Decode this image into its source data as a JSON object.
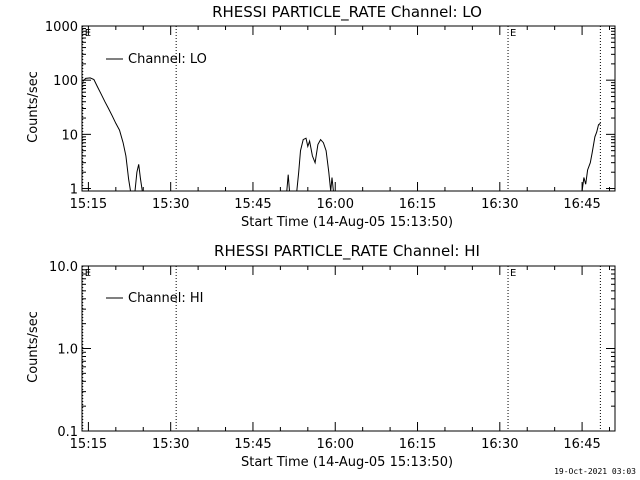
{
  "chart_data": [
    {
      "type": "line",
      "title": "RHESSI PARTICLE_RATE Channel: LO",
      "xlabel": "Start Time (14-Aug-05 15:13:50)",
      "ylabel": "Counts/sec",
      "y_scale": "log",
      "ylim": [
        0.9,
        1000
      ],
      "xlim": [
        "15:13:50",
        "16:51:00"
      ],
      "y_ticks": [
        {
          "value": 1,
          "label": "1"
        },
        {
          "value": 10,
          "label": "10"
        },
        {
          "value": 100,
          "label": "100"
        },
        {
          "value": 1000,
          "label": "1000"
        }
      ],
      "x_ticks": [
        "15:15",
        "15:30",
        "15:45",
        "16:00",
        "16:15",
        "16:30",
        "16:45"
      ],
      "legend": {
        "placement": "top-left",
        "entries": [
          "Channel: LO"
        ]
      },
      "markers": [
        {
          "time": "15:13:58",
          "label": "E"
        },
        {
          "time": "15:31:00",
          "label": ""
        },
        {
          "time": "16:31:30",
          "label": "E"
        },
        {
          "time": "16:48:20",
          "label": ""
        }
      ],
      "series": [
        {
          "name": "Channel: LO",
          "points": [
            [
              "15:14:00",
              95
            ],
            [
              "15:14:30",
              108
            ],
            [
              "15:15:20",
              110
            ],
            [
              "15:16:00",
              103
            ],
            [
              "15:16:40",
              75
            ],
            [
              "15:17:20",
              55
            ],
            [
              "15:18:00",
              40
            ],
            [
              "15:18:40",
              30
            ],
            [
              "15:19:20",
              22
            ],
            [
              "15:20:00",
              16
            ],
            [
              "15:20:40",
              12
            ],
            [
              "15:21:20",
              7
            ],
            [
              "15:21:50",
              4
            ],
            [
              "15:22:20",
              1.5
            ],
            [
              "15:22:40",
              0.9
            ],
            [
              "15:23:30",
              0.9
            ],
            [
              "15:23:50",
              2
            ],
            [
              "15:24:10",
              2.8
            ],
            [
              "15:24:30",
              1.5
            ],
            [
              "15:24:50",
              0.9
            ],
            [
              "15:51:10",
              0.9
            ],
            [
              "15:51:25",
              1.8
            ],
            [
              "15:51:40",
              0.9
            ],
            [
              "15:53:00",
              0.9
            ],
            [
              "15:53:20",
              2
            ],
            [
              "15:53:40",
              5
            ],
            [
              "15:54:10",
              8
            ],
            [
              "15:54:40",
              8.5
            ],
            [
              "15:55:00",
              6
            ],
            [
              "15:55:20",
              7.5
            ],
            [
              "15:55:50",
              4
            ],
            [
              "15:56:20",
              3
            ],
            [
              "15:56:50",
              6.5
            ],
            [
              "15:57:20",
              8
            ],
            [
              "15:57:50",
              7
            ],
            [
              "15:58:20",
              5
            ],
            [
              "15:58:50",
              2
            ],
            [
              "15:59:10",
              0.9
            ],
            [
              "15:59:25",
              1.6
            ],
            [
              "15:59:40",
              0.9
            ],
            [
              "16:45:00",
              0.9
            ],
            [
              "16:45:20",
              1.6
            ],
            [
              "16:45:40",
              1.2
            ],
            [
              "16:46:00",
              2.2
            ],
            [
              "16:46:30",
              3
            ],
            [
              "16:46:50",
              4.5
            ],
            [
              "16:47:20",
              9
            ],
            [
              "16:47:40",
              11
            ],
            [
              "16:48:00",
              15
            ],
            [
              "16:48:20",
              16
            ]
          ]
        }
      ]
    },
    {
      "type": "line",
      "title": "RHESSI PARTICLE_RATE Channel: HI",
      "xlabel": "Start Time (14-Aug-05 15:13:50)",
      "ylabel": "Counts/sec",
      "y_scale": "log",
      "ylim": [
        0.1,
        10
      ],
      "xlim": [
        "15:13:50",
        "16:51:00"
      ],
      "y_ticks": [
        {
          "value": 0.1,
          "label": "0.1"
        },
        {
          "value": 1,
          "label": "1.0"
        },
        {
          "value": 10,
          "label": "10.0"
        }
      ],
      "x_ticks": [
        "15:15",
        "15:30",
        "15:45",
        "16:00",
        "16:15",
        "16:30",
        "16:45"
      ],
      "legend": {
        "placement": "top-left",
        "entries": [
          "Channel: HI"
        ]
      },
      "markers": [
        {
          "time": "15:13:58",
          "label": "E"
        },
        {
          "time": "15:31:00",
          "label": ""
        },
        {
          "time": "16:31:30",
          "label": "E"
        },
        {
          "time": "16:48:20",
          "label": ""
        }
      ],
      "series": [
        {
          "name": "Channel: HI",
          "points": []
        }
      ]
    }
  ],
  "footer": {
    "timestamp": "19-Oct-2021 03:03"
  }
}
